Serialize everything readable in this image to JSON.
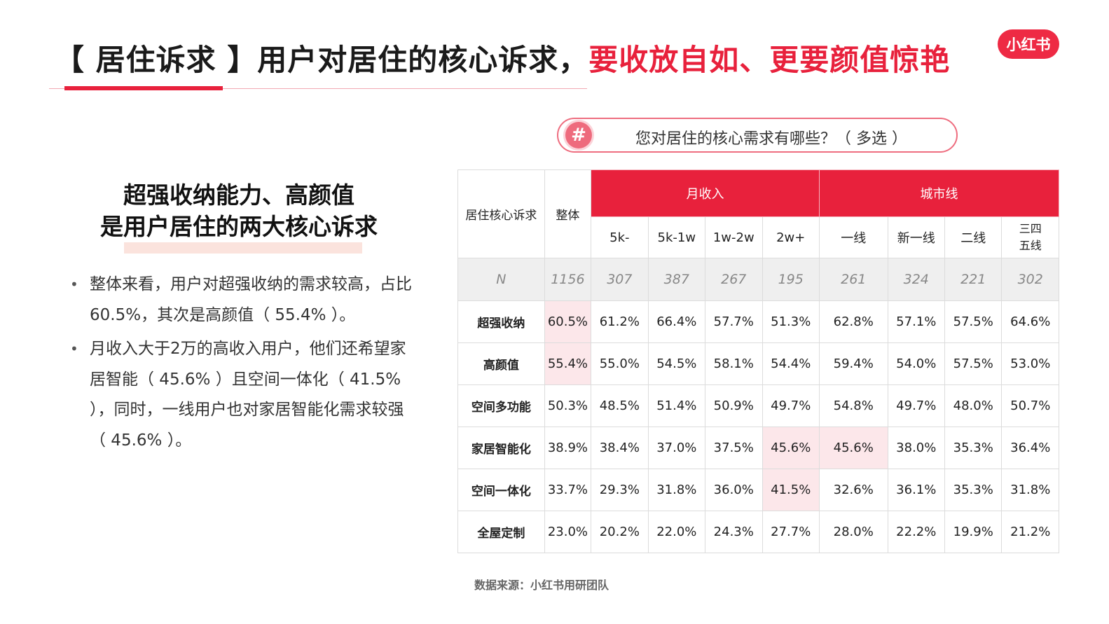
{
  "title": {
    "part1": "【 居住诉求 】用户对居住的核心诉求，",
    "part2": "要收放自如、更要颜值惊艳"
  },
  "logo": {
    "text": "小红书"
  },
  "question": {
    "icon": "hash-icon",
    "symbol": "#",
    "text": "您对居住的核心需求有哪些？（ 多选 ）"
  },
  "left": {
    "subheading": [
      "超强收纳能力、高颜值",
      "是用户居住的两大核心诉求"
    ],
    "bullets": [
      "整体来看，用户对超强收纳的需求较高，占比60.5%，其次是高颜值（ 55.4% ）。",
      "月收入大于2万的高收入用户，他们还希望家居智能（ 45.6% ）且空间一体化（ 41.5% ），同时，一线用户也对家居智能化需求较强（ 45.6% ）。"
    ]
  },
  "table": {
    "corner_label": "居住核心诉求",
    "overall_label": "整体",
    "groups": [
      "月收入",
      "城市线"
    ],
    "subcols": [
      "5k-",
      "5k-1w",
      "1w-2w",
      "2w+",
      "一线",
      "新一线",
      "二线",
      "三四\n五线"
    ],
    "n_row": {
      "label": "N",
      "values": [
        "1156",
        "307",
        "387",
        "267",
        "195",
        "261",
        "324",
        "221",
        "302"
      ]
    },
    "rows": [
      {
        "label": "超强收纳",
        "values": [
          "60.5%",
          "61.2%",
          "66.4%",
          "57.7%",
          "51.3%",
          "62.8%",
          "57.1%",
          "57.5%",
          "64.6%"
        ],
        "highlight": [
          0
        ]
      },
      {
        "label": "高颜值",
        "values": [
          "55.4%",
          "55.0%",
          "54.5%",
          "58.1%",
          "54.4%",
          "59.4%",
          "54.0%",
          "57.5%",
          "53.0%"
        ],
        "highlight": [
          0
        ]
      },
      {
        "label": "空间多功能",
        "values": [
          "50.3%",
          "48.5%",
          "51.4%",
          "50.9%",
          "49.7%",
          "54.8%",
          "49.7%",
          "48.0%",
          "50.7%"
        ],
        "highlight": []
      },
      {
        "label": "家居智能化",
        "values": [
          "38.9%",
          "38.4%",
          "37.0%",
          "37.5%",
          "45.6%",
          "45.6%",
          "38.0%",
          "35.3%",
          "36.4%"
        ],
        "highlight": [
          4,
          5
        ]
      },
      {
        "label": "空间一体化",
        "values": [
          "33.7%",
          "29.3%",
          "31.8%",
          "36.0%",
          "41.5%",
          "32.6%",
          "36.1%",
          "35.3%",
          "31.8%"
        ],
        "highlight": [
          4
        ]
      },
      {
        "label": "全屋定制",
        "values": [
          "23.0%",
          "20.2%",
          "22.0%",
          "24.3%",
          "27.7%",
          "28.0%",
          "22.2%",
          "19.9%",
          "21.2%"
        ],
        "highlight": []
      }
    ]
  },
  "source": "数据来源：小红书用研团队",
  "colors": {
    "accent": "#e8213c",
    "highlight_cell": "#fce7ea",
    "n_row_bg": "#efefef"
  }
}
